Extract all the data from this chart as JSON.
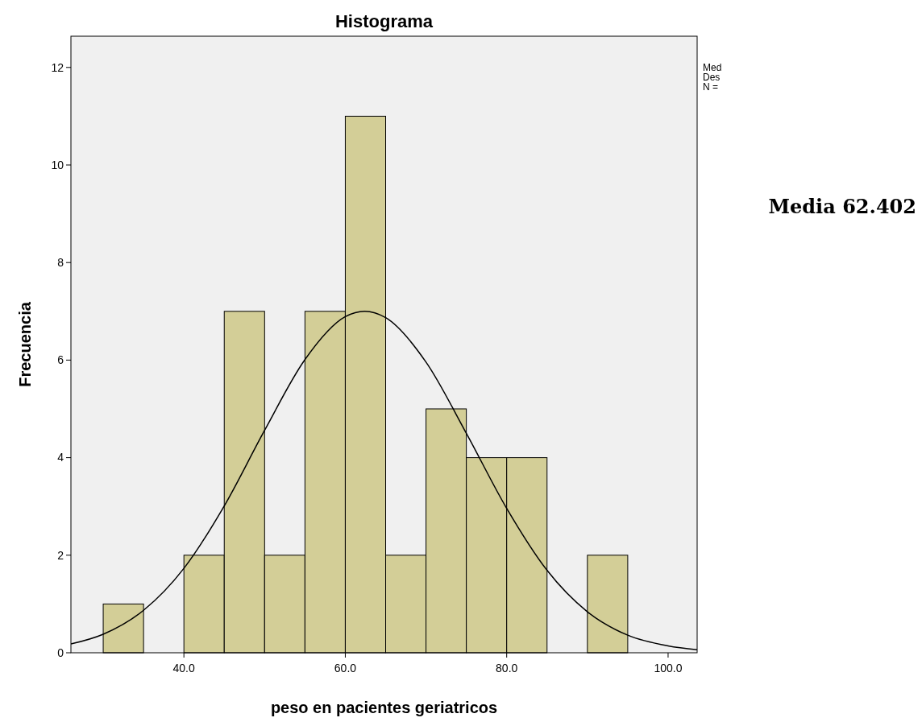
{
  "chart_data": {
    "type": "histogram",
    "title": "Histograma",
    "xlabel": "peso en pacientes geriatricos",
    "ylabel": "Frecuencia",
    "bins": [
      30,
      35,
      40,
      45,
      50,
      55,
      60,
      65,
      70,
      75,
      80,
      85,
      90,
      95
    ],
    "values": [
      1,
      0,
      2,
      7,
      2,
      7,
      11,
      2,
      5,
      4,
      4,
      0,
      2
    ],
    "color": "#d3ce97",
    "series": [
      {
        "type": "line",
        "color": "#000000",
        "x": [
          26,
          30,
          35,
          40,
          45,
          50,
          55,
          60,
          62.4,
          65,
          70,
          75,
          80,
          85,
          90,
          95,
          100,
          103.6
        ],
        "values": [
          0.18,
          0.38,
          0.87,
          1.73,
          3.01,
          4.56,
          6.01,
          6.89,
          7,
          6.87,
          5.96,
          4.5,
          2.96,
          1.69,
          0.84,
          0.36,
          0.14,
          0.06
        ]
      }
    ],
    "xlim": [
      26,
      103.6
    ],
    "xticks": [
      {
        "value": 40,
        "label": "40.0"
      },
      {
        "value": 60,
        "label": "60.0"
      },
      {
        "value": 80,
        "label": "80.0"
      },
      {
        "value": 100,
        "label": "100.0"
      }
    ],
    "ylim": [
      0,
      12.64
    ],
    "yticks": [
      0,
      2,
      4,
      6,
      8,
      10,
      12
    ],
    "grid": false,
    "annotations": [
      "Med",
      "Des",
      "N =",
      "Media 62.402"
    ]
  }
}
